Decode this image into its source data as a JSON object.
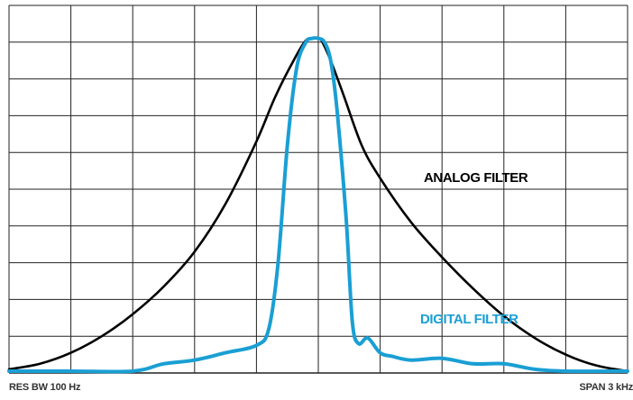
{
  "footer": {
    "left": "RES BW 100 Hz",
    "right": "SPAN 3 kHz"
  },
  "chart_data": {
    "type": "line",
    "title": "",
    "xlabel": "",
    "ylabel": "",
    "grid": true,
    "grid_divisions": {
      "x": 10,
      "y": 10
    },
    "xlim": [
      0,
      10
    ],
    "ylim": [
      0,
      10
    ],
    "annotations": [
      {
        "text": "ANALOG FILTER",
        "series": "ANALOG FILTER"
      },
      {
        "text": "DIGITAL FILTER",
        "series": "DIGITAL FILTER"
      }
    ],
    "series": [
      {
        "name": "ANALOG FILTER",
        "color": "#000000",
        "x": [
          0,
          0.5,
          1,
          1.5,
          2,
          2.5,
          3,
          3.5,
          4,
          4.3,
          4.6,
          4.8,
          4.95,
          5,
          5.05,
          5.2,
          5.4,
          5.7,
          6,
          6.5,
          7,
          7.5,
          8,
          8.5,
          9,
          9.5,
          10
        ],
        "y": [
          0.1,
          0.25,
          0.55,
          1.0,
          1.6,
          2.35,
          3.3,
          4.6,
          6.3,
          7.5,
          8.5,
          9.05,
          9.1,
          9.1,
          9.05,
          8.5,
          7.6,
          6.2,
          5.3,
          4.1,
          3.15,
          2.3,
          1.55,
          0.95,
          0.5,
          0.2,
          0.05
        ]
      },
      {
        "name": "DIGITAL FILTER",
        "color": "#1a9fd4",
        "x": [
          0,
          1,
          2,
          2.5,
          3,
          3.5,
          4,
          4.2,
          4.35,
          4.5,
          4.65,
          4.8,
          4.9,
          5,
          5.1,
          5.2,
          5.3,
          5.45,
          5.55,
          5.65,
          5.8,
          6,
          6.2,
          6.5,
          7,
          7.5,
          8,
          8.5,
          9,
          10
        ],
        "y": [
          0.05,
          0.05,
          0.05,
          0.25,
          0.35,
          0.55,
          0.75,
          1.2,
          3.0,
          6.2,
          8.3,
          9.0,
          9.1,
          9.1,
          9.0,
          8.5,
          7.2,
          4.2,
          1.4,
          0.8,
          0.95,
          0.55,
          0.45,
          0.35,
          0.4,
          0.25,
          0.25,
          0.1,
          0.05,
          0.05
        ]
      }
    ]
  }
}
